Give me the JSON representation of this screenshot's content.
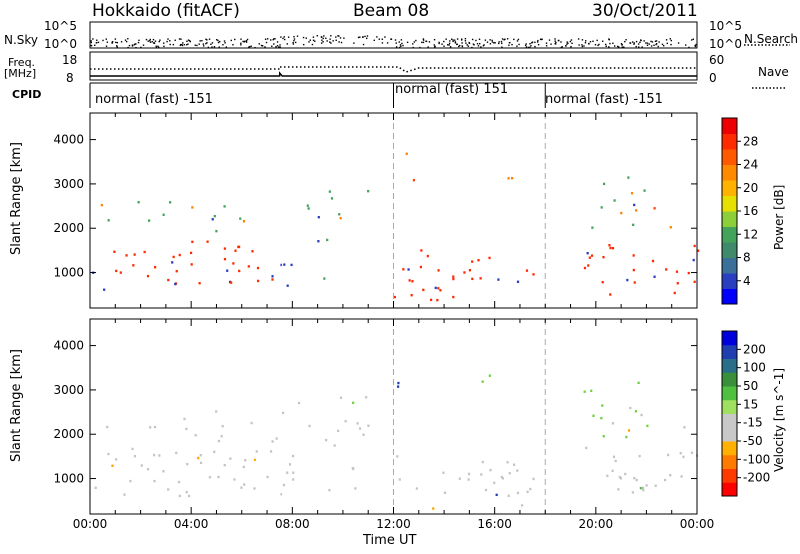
{
  "header": {
    "station": "Hokkaido (fitACF)",
    "beam": "Beam 08",
    "date": "30/Oct/2011"
  },
  "side_labels": {
    "nsky": "N.Sky",
    "freq_line1": "Freq.",
    "freq_line2": "[MHz]",
    "cpid": "CPID",
    "nsearch": "N.Search",
    "nave": "Nave"
  },
  "ticks": {
    "nsky_left": [
      "10^5",
      "10^0"
    ],
    "nsky_right": [
      "10^5",
      "10^0"
    ],
    "freq_left": [
      "18",
      "8"
    ],
    "nave_right": [
      "60",
      "0"
    ]
  },
  "cpid_segments": [
    {
      "label": "normal (fast) -151",
      "start_ut": 0,
      "end_ut": 12
    },
    {
      "label": "normal (fast) 151",
      "start_ut": 12,
      "end_ut": 18
    },
    {
      "label": "normal (fast) -151",
      "start_ut": 18,
      "end_ut": 24
    }
  ],
  "power_colorbar": {
    "label": "Power [dB]",
    "ticks": [
      "28",
      "24",
      "20",
      "16",
      "12",
      "8",
      "4"
    ],
    "colors": [
      "#0000ff",
      "#2a3fc0",
      "#3a6f9a",
      "#3f8a6a",
      "#44a35a",
      "#8ccf3a",
      "#e6e000",
      "#ffb300",
      "#ff8a00",
      "#ff5a00",
      "#ff2a00",
      "#ee0000"
    ]
  },
  "velocity_colorbar": {
    "label": "Velocity [m s^-1]",
    "ticks": [
      "200",
      "100",
      "50",
      "15",
      "-15",
      "-50",
      "-100",
      "-200"
    ],
    "colors": [
      "#ff0000",
      "#ff3a00",
      "#ff7a00",
      "#ffb000",
      "#c8c8c8",
      "#c8c8c8",
      "#a0e060",
      "#50c040",
      "#3a8f3a",
      "#2a6f8a",
      "#1f3fb0",
      "#0000dd"
    ]
  },
  "chart_data": [
    {
      "type": "heatmap",
      "name": "power",
      "xlabel": "",
      "ylabel": "Slant Range [km]",
      "x_ticks": [
        "00:00",
        "04:00",
        "08:00",
        "12:00",
        "16:00",
        "20:00",
        "00:00"
      ],
      "y_ticks": [
        "1000",
        "2000",
        "3000",
        "4000"
      ],
      "xlim": [
        0,
        24
      ],
      "ylim": [
        200,
        4600
      ],
      "regions": [
        {
          "t0": 0.0,
          "t1": 7.5,
          "r0": 600,
          "r1": 1700,
          "c": 5,
          "fill": 0.85
        },
        {
          "t0": 0.0,
          "t1": 7.5,
          "r0": 1700,
          "r1": 2600,
          "c": 3,
          "fill": 0.35
        },
        {
          "t0": 7.5,
          "t1": 9.5,
          "r0": 600,
          "r1": 1800,
          "c": 4,
          "fill": 0.55
        },
        {
          "t0": 8.5,
          "t1": 11.0,
          "r0": 1900,
          "r1": 2900,
          "c": 3,
          "fill": 0.55
        },
        {
          "t0": 12.0,
          "t1": 17.5,
          "r0": 600,
          "r1": 1500,
          "c": 5,
          "fill": 0.9
        },
        {
          "t0": 12.0,
          "t1": 17.5,
          "r0": 300,
          "r1": 500,
          "c": 5,
          "fill": 0.8
        },
        {
          "t0": 12.0,
          "t1": 13.0,
          "r0": 2800,
          "r1": 4400,
          "c": 1,
          "fill": 0.25
        },
        {
          "t0": 14.5,
          "t1": 17.0,
          "r0": 3100,
          "r1": 3400,
          "c": 2,
          "fill": 0.45
        },
        {
          "t0": 19.5,
          "t1": 24.0,
          "r0": 500,
          "r1": 1700,
          "c": 5,
          "fill": 0.85
        },
        {
          "t0": 19.5,
          "t1": 22.0,
          "r0": 1700,
          "r1": 3200,
          "c": 3,
          "fill": 0.45
        },
        {
          "t0": 20.5,
          "t1": 24.0,
          "r0": 2000,
          "r1": 2600,
          "c": 2,
          "fill": 0.35
        }
      ]
    },
    {
      "type": "heatmap",
      "name": "velocity",
      "xlabel": "Time UT",
      "ylabel": "Slant Range [km]",
      "x_ticks": [
        "00:00",
        "04:00",
        "08:00",
        "12:00",
        "16:00",
        "20:00",
        "00:00"
      ],
      "y_ticks": [
        "1000",
        "2000",
        "3000",
        "4000"
      ],
      "xlim": [
        0,
        24
      ],
      "ylim": [
        200,
        4600
      ],
      "regions": [
        {
          "t0": 0.0,
          "t1": 7.5,
          "r0": 600,
          "r1": 1700,
          "c": 0,
          "fill": 0.85
        },
        {
          "t0": 0.0,
          "t1": 7.5,
          "r0": 1700,
          "r1": 2600,
          "c": 0,
          "fill": 0.35
        },
        {
          "t0": 7.5,
          "t1": 11.0,
          "r0": 600,
          "r1": 2900,
          "c": 0,
          "fill": 0.55
        },
        {
          "t0": 12.0,
          "t1": 17.5,
          "r0": 600,
          "r1": 1500,
          "c": 0,
          "fill": 0.9
        },
        {
          "t0": 12.0,
          "t1": 17.5,
          "r0": 300,
          "r1": 500,
          "c": 3,
          "fill": 0.4
        },
        {
          "t0": 12.0,
          "t1": 13.0,
          "r0": 2800,
          "r1": 4400,
          "c": 7,
          "fill": 0.25
        },
        {
          "t0": 14.5,
          "t1": 17.0,
          "r0": 3100,
          "r1": 3400,
          "c": 5,
          "fill": 0.45
        },
        {
          "t0": 19.5,
          "t1": 24.0,
          "r0": 500,
          "r1": 1700,
          "c": 0,
          "fill": 0.85
        },
        {
          "t0": 19.5,
          "t1": 22.0,
          "r0": 1700,
          "r1": 3200,
          "c": 5,
          "fill": 0.55
        },
        {
          "t0": 20.5,
          "t1": 24.0,
          "r0": 2000,
          "r1": 2600,
          "c": 0,
          "fill": 0.35
        }
      ]
    }
  ]
}
